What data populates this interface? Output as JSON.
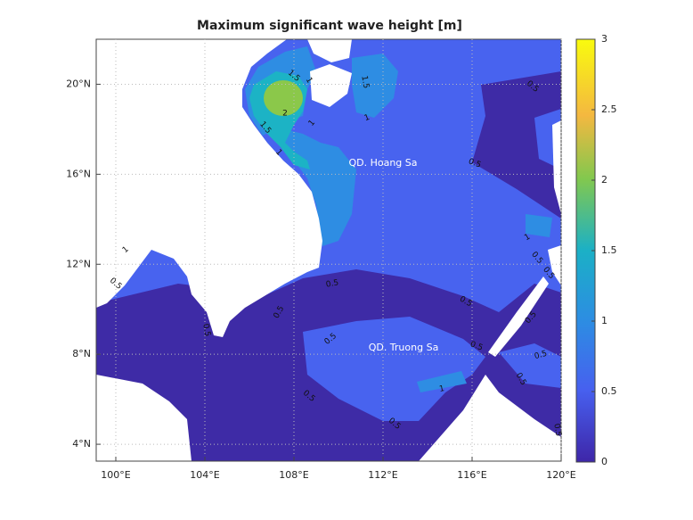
{
  "title": "Maximum significant wave height [m]",
  "map": {
    "xlim": [
      99.12,
      120.0
    ],
    "ylim": [
      3.25,
      22.0
    ],
    "xticks": [
      {
        "value": 100,
        "label": "100°E"
      },
      {
        "value": 104,
        "label": "104°E"
      },
      {
        "value": 108,
        "label": "108°E"
      },
      {
        "value": 112,
        "label": "112°E"
      },
      {
        "value": 116,
        "label": "116°E"
      },
      {
        "value": 120,
        "label": "120°E"
      }
    ],
    "yticks": [
      {
        "value": 4,
        "label": "4°N"
      },
      {
        "value": 8,
        "label": "8°N"
      },
      {
        "value": 12,
        "label": "12°N"
      },
      {
        "value": 16,
        "label": "16°N"
      },
      {
        "value": 20,
        "label": "20°N"
      }
    ],
    "grid": true,
    "places": [
      "QD. Hoang Sa",
      "QD. Truong Sa"
    ],
    "contour_labels": [
      1.5,
      1,
      2,
      1,
      1.5,
      1,
      1.5,
      1,
      0.5,
      0.5,
      1,
      0.5,
      0.5,
      1,
      0.5,
      0.5,
      0.5,
      0.5,
      0.5,
      0.5,
      0.5,
      0.5,
      0.5,
      1,
      0.5,
      0.5,
      0.5,
      0.5
    ]
  },
  "colorbar": {
    "lim": [
      0,
      3
    ],
    "ticks": [
      0,
      0.5,
      1,
      1.5,
      2,
      2.5,
      3
    ]
  }
}
